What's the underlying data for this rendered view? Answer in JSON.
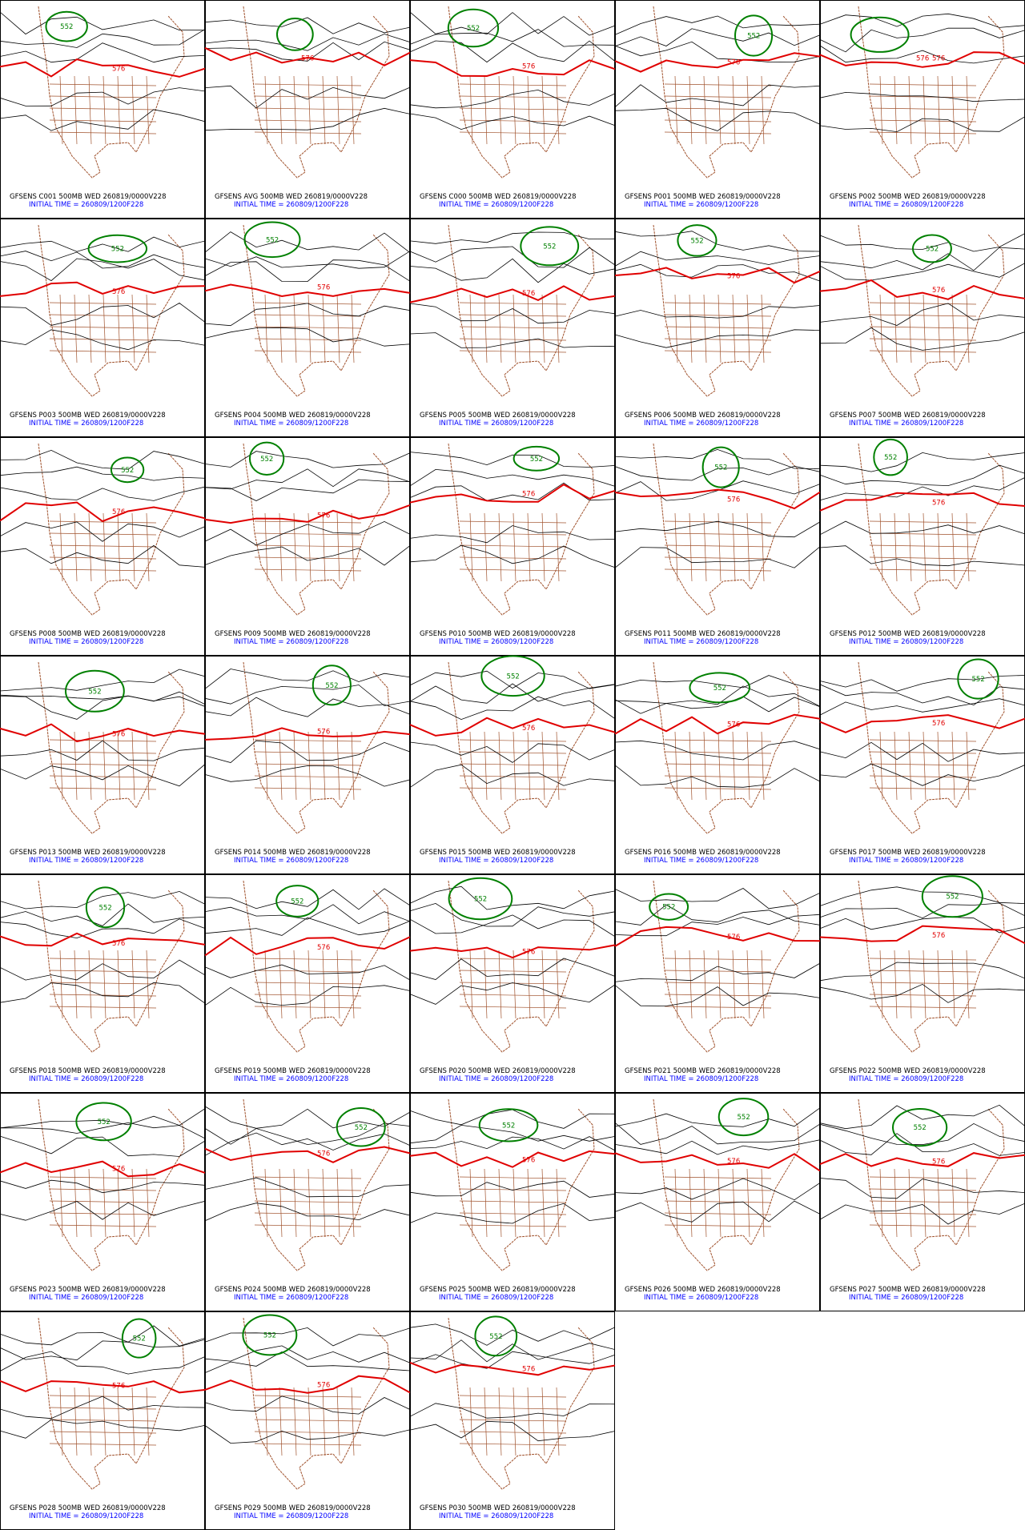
{
  "panels": [
    {
      "line1": "GFSENS C001 500MB WED 260819/0000V228",
      "line2": "INITIAL TIME = 260809/1200F228",
      "contour_labels": [
        "552",
        "576"
      ]
    },
    {
      "line1": "GFSENS AVG 500MB WED 260819/0000V228",
      "line2": "INITIAL TIME = 260809/1200F228",
      "contour_labels": [
        "576"
      ]
    },
    {
      "line1": "GFSENS C000 500MB WED 260819/0000V228",
      "line2": "INITIAL TIME = 260809/1200F228",
      "contour_labels": [
        "552",
        "576"
      ]
    },
    {
      "line1": "GFSENS P001 500MB WED 260819/0000V228",
      "line2": "INITIAL TIME = 260809/1200F228",
      "contour_labels": [
        "552",
        "576"
      ]
    },
    {
      "line1": "GFSENS P002 500MB WED 260819/0000V228",
      "line2": "INITIAL TIME = 260809/1200F228",
      "contour_labels": [
        "576",
        "576"
      ]
    },
    {
      "line1": "GFSENS P003 500MB WED 260819/0000V228",
      "line2": "INITIAL TIME = 260809/1200F228",
      "contour_labels": [
        "552",
        "576"
      ]
    },
    {
      "line1": "GFSENS P004 500MB WED 260819/0000V228",
      "line2": "INITIAL TIME = 260809/1200F228",
      "contour_labels": [
        "552",
        "576"
      ]
    },
    {
      "line1": "GFSENS P005 500MB WED 260819/0000V228",
      "line2": "INITIAL TIME = 260809/1200F228",
      "contour_labels": [
        "552",
        "576"
      ]
    },
    {
      "line1": "GFSENS P006 500MB WED 260819/0000V228",
      "line2": "INITIAL TIME = 260809/1200F228",
      "contour_labels": [
        "552",
        "576"
      ]
    },
    {
      "line1": "GFSENS P007 500MB WED 260819/0000V228",
      "line2": "INITIAL TIME = 260809/1200F228",
      "contour_labels": [
        "552",
        "576"
      ]
    },
    {
      "line1": "GFSENS P008 500MB WED 260819/0000V228",
      "line2": "INITIAL TIME = 260809/1200F228",
      "contour_labels": [
        "552",
        "576"
      ]
    },
    {
      "line1": "GFSENS P009 500MB WED 260819/0000V228",
      "line2": "INITIAL TIME = 260809/1200F228",
      "contour_labels": [
        "552",
        "576"
      ]
    },
    {
      "line1": "GFSENS P010 500MB WED 260819/0000V228",
      "line2": "INITIAL TIME = 260809/1200F228",
      "contour_labels": [
        "552",
        "576"
      ]
    },
    {
      "line1": "GFSENS P011 500MB WED 260819/0000V228",
      "line2": "INITIAL TIME = 260809/1200F228",
      "contour_labels": [
        "552",
        "576"
      ]
    },
    {
      "line1": "GFSENS P012 500MB WED 260819/0000V228",
      "line2": "INITIAL TIME = 260809/1200F228",
      "contour_labels": [
        "552",
        "576"
      ]
    },
    {
      "line1": "GFSENS P013 500MB WED 260819/0000V228",
      "line2": "INITIAL TIME = 260809/1200F228",
      "contour_labels": [
        "552",
        "576"
      ]
    },
    {
      "line1": "GFSENS P014 500MB WED 260819/0000V228",
      "line2": "INITIAL TIME = 260809/1200F228",
      "contour_labels": [
        "552",
        "576"
      ]
    },
    {
      "line1": "GFSENS P015 500MB WED 260819/0000V228",
      "line2": "INITIAL TIME = 260809/1200F228",
      "contour_labels": [
        "552",
        "576"
      ]
    },
    {
      "line1": "GFSENS P016 500MB WED 260819/0000V228",
      "line2": "INITIAL TIME = 260809/1200F228",
      "contour_labels": [
        "552",
        "576"
      ]
    },
    {
      "line1": "GFSENS P017 500MB WED 260819/0000V228",
      "line2": "INITIAL TIME = 260809/1200F228",
      "contour_labels": [
        "552",
        "576"
      ]
    },
    {
      "line1": "GFSENS P018 500MB WED 260819/0000V228",
      "line2": "INITIAL TIME = 260809/1200F228",
      "contour_labels": [
        "552",
        "576"
      ]
    },
    {
      "line1": "GFSENS P019 500MB WED 260819/0000V228",
      "line2": "INITIAL TIME = 260809/1200F228",
      "contour_labels": [
        "552",
        "576"
      ]
    },
    {
      "line1": "GFSENS P020 500MB WED 260819/0000V228",
      "line2": "INITIAL TIME = 260809/1200F228",
      "contour_labels": [
        "552",
        "576"
      ]
    },
    {
      "line1": "GFSENS P021 500MB WED 260819/0000V228",
      "line2": "INITIAL TIME = 260809/1200F228",
      "contour_labels": [
        "552",
        "576"
      ]
    },
    {
      "line1": "GFSENS P022 500MB WED 260819/0000V228",
      "line2": "INITIAL TIME = 260809/1200F228",
      "contour_labels": [
        "552",
        "576"
      ]
    },
    {
      "line1": "GFSENS P023 500MB WED 260819/0000V228",
      "line2": "INITIAL TIME = 260809/1200F228",
      "contour_labels": [
        "552",
        "576"
      ]
    },
    {
      "line1": "GFSENS P024 500MB WED 260819/0000V228",
      "line2": "INITIAL TIME = 260809/1200F228",
      "contour_labels": [
        "552",
        "576"
      ]
    },
    {
      "line1": "GFSENS P025 500MB WED 260819/0000V228",
      "line2": "INITIAL TIME = 260809/1200F228",
      "contour_labels": [
        "552",
        "576"
      ]
    },
    {
      "line1": "GFSENS P026 500MB WED 260819/0000V228",
      "line2": "INITIAL TIME = 260809/1200F228",
      "contour_labels": [
        "552",
        "576"
      ]
    },
    {
      "line1": "GFSENS P027 500MB WED 260819/0000V228",
      "line2": "INITIAL TIME = 260809/1200F228",
      "contour_labels": [
        "552",
        "576"
      ]
    },
    {
      "line1": "GFSENS P028 500MB WED 260819/0000V228",
      "line2": "INITIAL TIME = 260809/1200F228",
      "contour_labels": [
        "552",
        "576"
      ]
    },
    {
      "line1": "GFSENS P029 500MB WED 260819/0000V228",
      "line2": "INITIAL TIME = 260809/1200F228",
      "contour_labels": [
        "552",
        "576"
      ]
    },
    {
      "line1": "GFSENS P030 500MB WED 260819/0000V228",
      "line2": "INITIAL TIME = 260809/1200F228",
      "contour_labels": [
        "552",
        "576"
      ]
    }
  ]
}
